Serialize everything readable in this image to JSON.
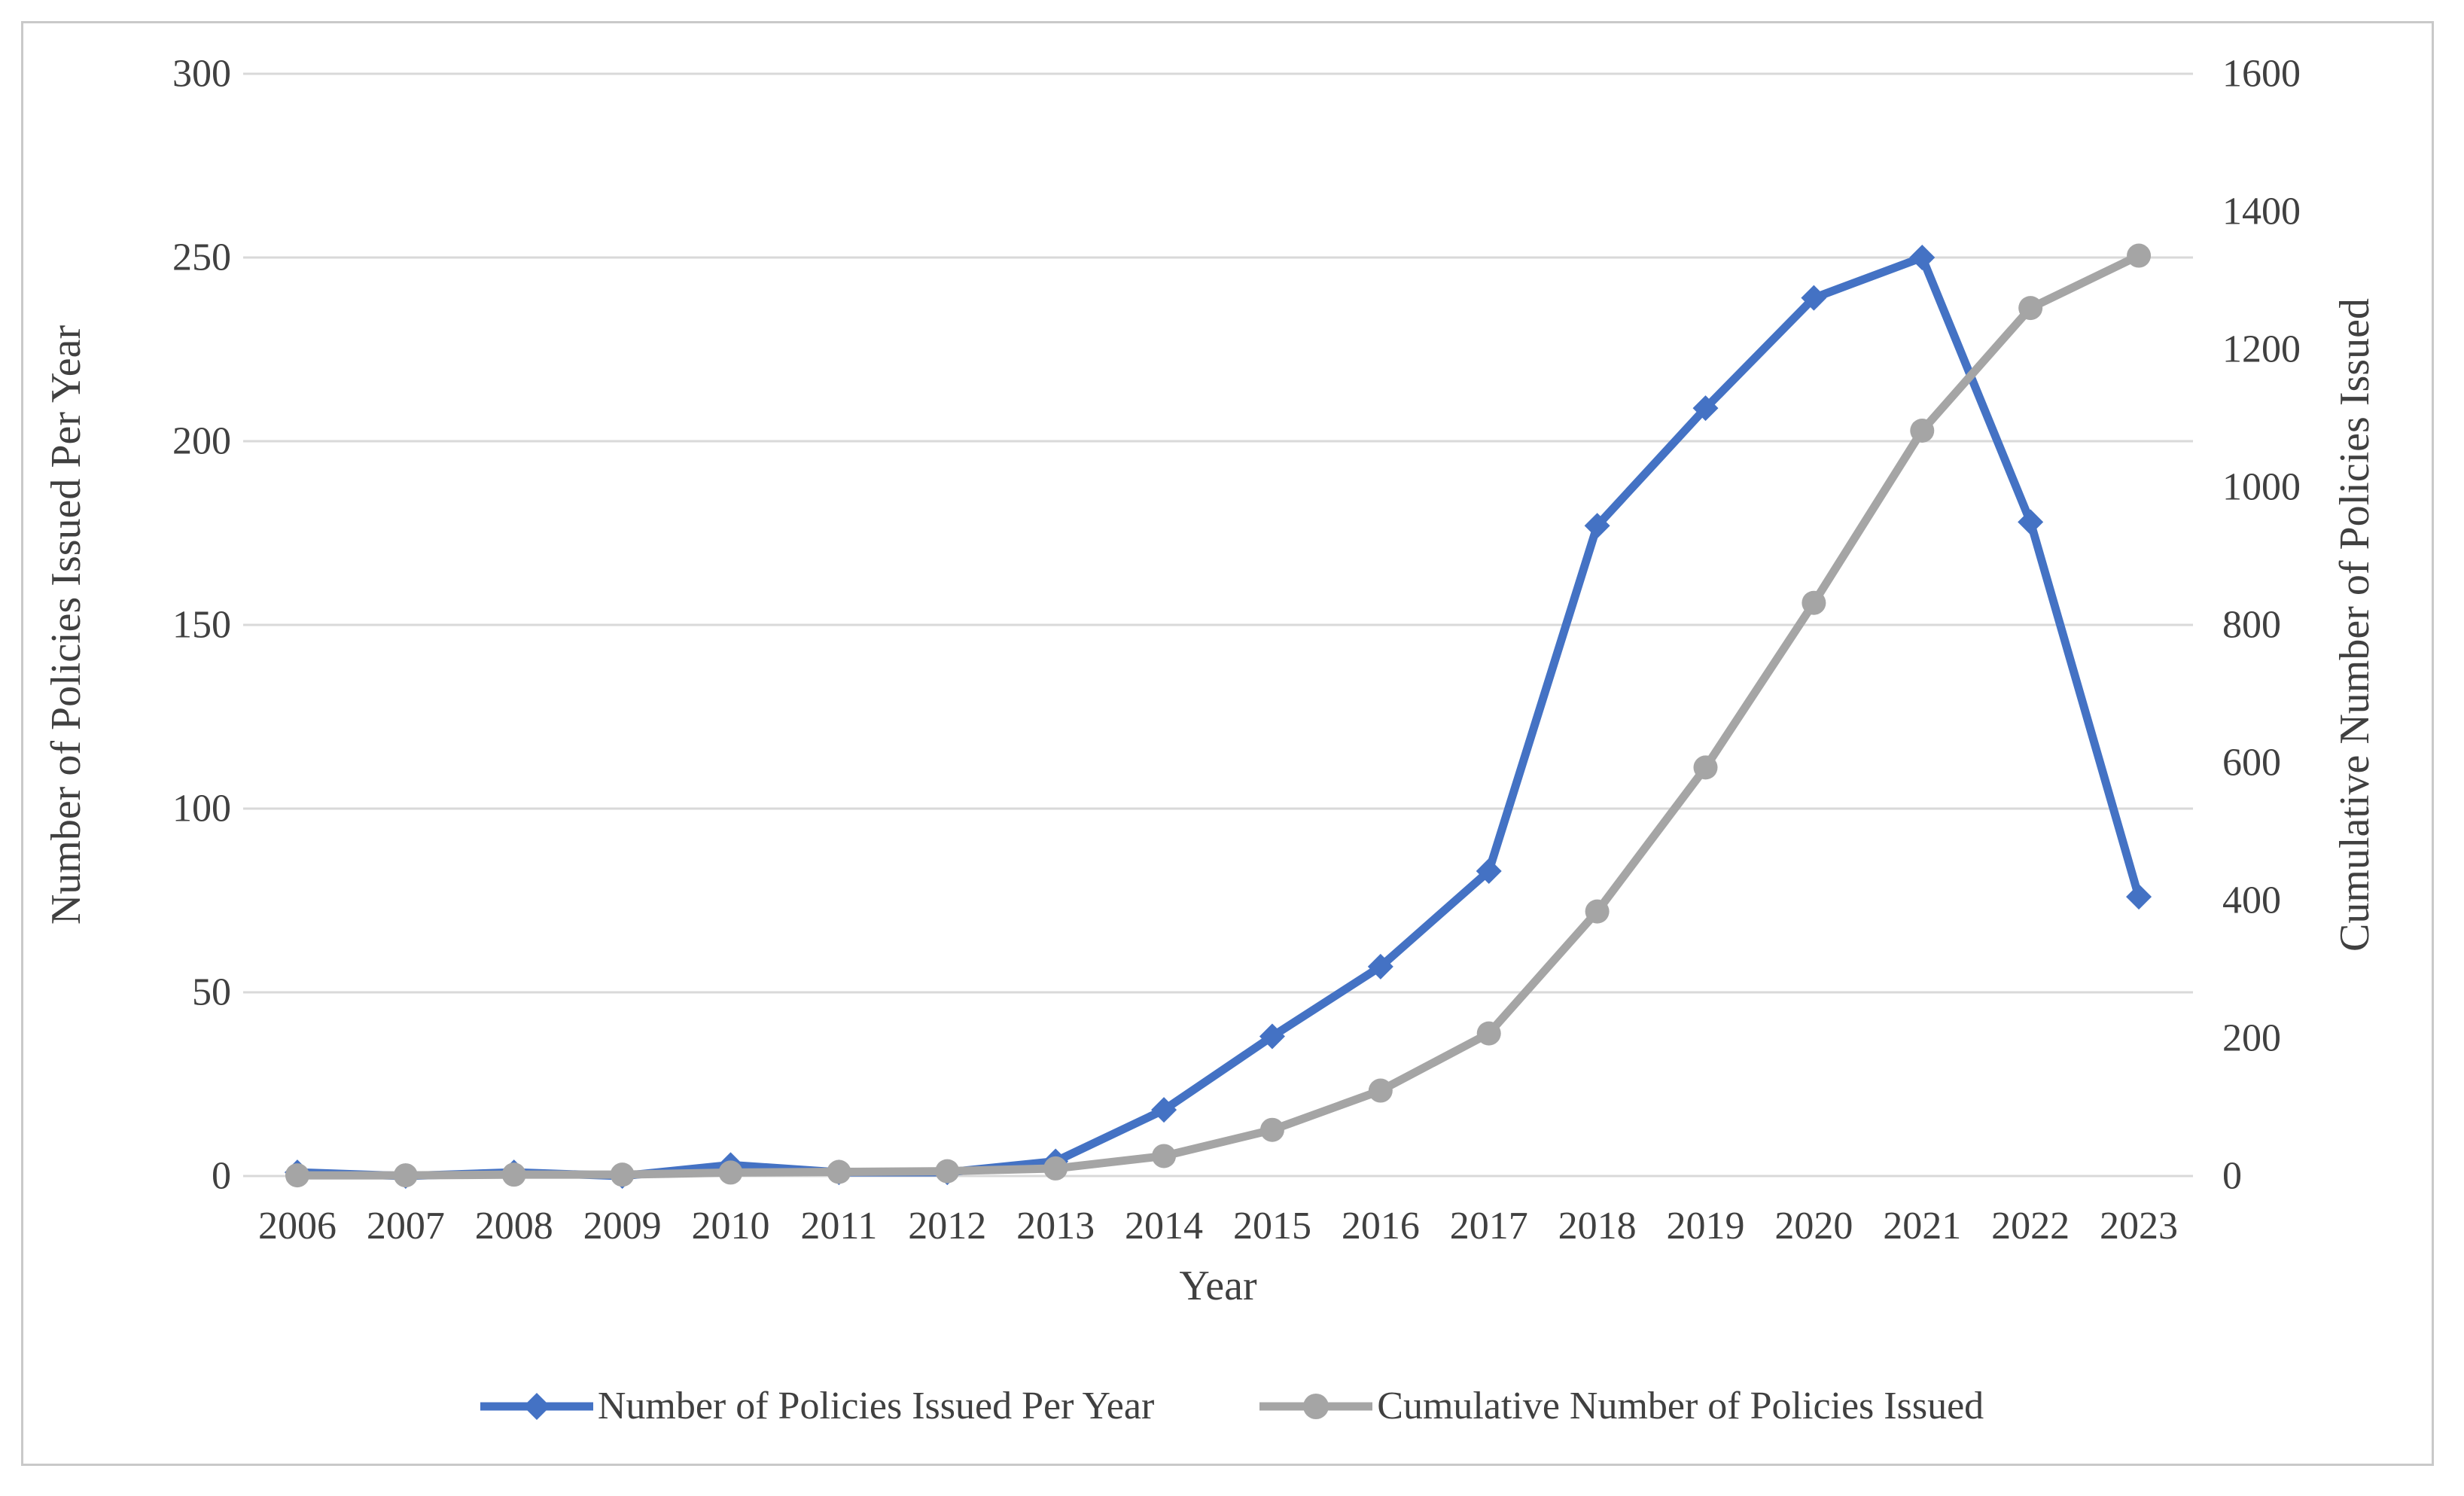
{
  "chart_data": {
    "type": "line",
    "title": "",
    "categories": [
      "2006",
      "2007",
      "2008",
      "2009",
      "2010",
      "2011",
      "2012",
      "2013",
      "2014",
      "2015",
      "2016",
      "2017",
      "2018",
      "2019",
      "2020",
      "2021",
      "2022",
      "2023"
    ],
    "series": [
      {
        "name": "Number of Policies Issued Per Year",
        "axis": "left",
        "color": "#4472C4",
        "marker": "diamond",
        "values": [
          1,
          0,
          1,
          0,
          3,
          1,
          1,
          4,
          18,
          38,
          57,
          83,
          177,
          209,
          239,
          250,
          178,
          76
        ]
      },
      {
        "name": "Cumulative Number of Policies Issued",
        "axis": "right",
        "color": "#A5A5A5",
        "marker": "circle",
        "values": [
          1,
          1,
          2,
          2,
          5,
          6,
          7,
          11,
          29,
          67,
          124,
          207,
          384,
          593,
          832,
          1082,
          1260,
          1336
        ]
      }
    ],
    "x_axis": {
      "title": "Year"
    },
    "left_axis": {
      "title": "Number of Policies Issued Per Year",
      "min": 0,
      "max": 300,
      "step": 50,
      "ticks": [
        300,
        250,
        200,
        150,
        100,
        50,
        0
      ]
    },
    "right_axis": {
      "title": "Cumulative Number of Policies Issued",
      "min": 0,
      "max": 1600,
      "step": 200,
      "ticks": [
        1600,
        1400,
        1200,
        1000,
        800,
        600,
        400,
        200,
        0
      ]
    },
    "grid": "horizontal",
    "legend_position": "bottom",
    "colors": {
      "gridline": "#D9D9D9",
      "text": "#404040",
      "border": "#C9C9C9",
      "background": "#FFFFFF"
    }
  }
}
